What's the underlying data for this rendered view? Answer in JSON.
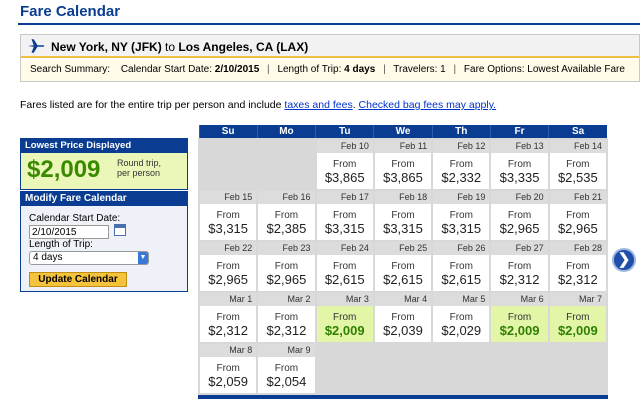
{
  "page": {
    "title": "Fare Calendar"
  },
  "route": {
    "origin": "New York, NY (JFK)",
    "connector": "to",
    "destination": "Los Angeles, CA (LAX)"
  },
  "summary": {
    "label": "Search Summary:",
    "start_label": "Calendar Start Date:",
    "start_value": "2/10/2015",
    "trip_label": "Length of Trip:",
    "trip_value": "4 days",
    "travelers_label": "Travelers:",
    "travelers_value": "1",
    "options_label": "Fare Options:",
    "options_value": "Lowest Available Fare"
  },
  "notice": {
    "text": "Fares listed are for the entire trip per person and include",
    "taxes_link": "taxes and fees",
    "bag_link": "Checked bag fees may apply."
  },
  "lowest": {
    "header": "Lowest Price Displayed",
    "price": "$2,009",
    "note_line1": "Round trip,",
    "note_line2": "per person"
  },
  "modify": {
    "header": "Modify Fare Calendar",
    "start_label": "Calendar Start Date:",
    "start_value": "2/10/2015",
    "trip_label": "Length of Trip:",
    "trip_value": "4 days",
    "button": "Update Calendar"
  },
  "calendar": {
    "weekdays": [
      "Su",
      "Mo",
      "Tu",
      "We",
      "Th",
      "Fr",
      "Sa"
    ],
    "from_label": "From",
    "weeks": [
      [
        {
          "date": "",
          "price": ""
        },
        {
          "date": "",
          "price": ""
        },
        {
          "date": "Feb 10",
          "price": "$3,865"
        },
        {
          "date": "Feb 11",
          "price": "$3,865"
        },
        {
          "date": "Feb 12",
          "price": "$2,332"
        },
        {
          "date": "Feb 13",
          "price": "$3,335"
        },
        {
          "date": "Feb 14",
          "price": "$2,535"
        }
      ],
      [
        {
          "date": "Feb 15",
          "price": "$3,315"
        },
        {
          "date": "Feb 16",
          "price": "$2,385"
        },
        {
          "date": "Feb 17",
          "price": "$3,315"
        },
        {
          "date": "Feb 18",
          "price": "$3,315"
        },
        {
          "date": "Feb 19",
          "price": "$3,315"
        },
        {
          "date": "Feb 20",
          "price": "$2,965"
        },
        {
          "date": "Feb 21",
          "price": "$2,965"
        }
      ],
      [
        {
          "date": "Feb 22",
          "price": "$2,965"
        },
        {
          "date": "Feb 23",
          "price": "$2,965"
        },
        {
          "date": "Feb 24",
          "price": "$2,615"
        },
        {
          "date": "Feb 25",
          "price": "$2,615"
        },
        {
          "date": "Feb 26",
          "price": "$2,615"
        },
        {
          "date": "Feb 27",
          "price": "$2,312"
        },
        {
          "date": "Feb 28",
          "price": "$2,312"
        }
      ],
      [
        {
          "date": "Mar 1",
          "price": "$2,312"
        },
        {
          "date": "Mar 2",
          "price": "$2,312"
        },
        {
          "date": "Mar 3",
          "price": "$2,009",
          "lowest": true
        },
        {
          "date": "Mar 4",
          "price": "$2,039"
        },
        {
          "date": "Mar 5",
          "price": "$2,029"
        },
        {
          "date": "Mar 6",
          "price": "$2,009",
          "lowest": true
        },
        {
          "date": "Mar 7",
          "price": "$2,009",
          "lowest": true
        }
      ],
      [
        {
          "date": "Mar 8",
          "price": "$2,059"
        },
        {
          "date": "Mar 9",
          "price": "$2,054"
        },
        {
          "date": "",
          "price": ""
        },
        {
          "date": "",
          "price": ""
        },
        {
          "date": "",
          "price": ""
        },
        {
          "date": "",
          "price": ""
        },
        {
          "date": "",
          "price": ""
        }
      ]
    ]
  },
  "icons": {
    "plane": "plane-icon",
    "calendar": "calendar-icon",
    "next": "chevron-right-icon",
    "dropdown": "chevron-down-icon"
  },
  "colors": {
    "header_blue": "#0a3d91",
    "lowest_green": "#e3f6a8",
    "price_green": "#2f8000",
    "button_yellow": "#f5c23b"
  }
}
